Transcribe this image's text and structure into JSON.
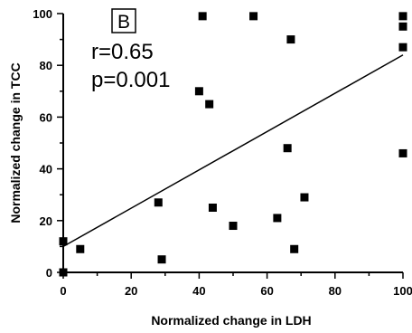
{
  "chart_data": {
    "type": "scatter",
    "title": "",
    "xlabel": "Normalized change in LDH",
    "ylabel": "Normalized change in TCC",
    "xlim": [
      0,
      100
    ],
    "ylim": [
      0,
      100
    ],
    "xticks": [
      "0",
      "20",
      "40",
      "60",
      "80",
      "100"
    ],
    "yticks": [
      "0",
      "20",
      "40",
      "60",
      "80",
      "100"
    ],
    "grid": false,
    "panel_label": "B",
    "annotations": [
      "r=0.65",
      "p=0.001"
    ],
    "series": [
      {
        "points": [
          {
            "x": 0,
            "y": 0
          },
          {
            "x": 0,
            "y": 12
          },
          {
            "x": 5,
            "y": 9
          },
          {
            "x": 28,
            "y": 27
          },
          {
            "x": 29,
            "y": 5
          },
          {
            "x": 40,
            "y": 70
          },
          {
            "x": 41,
            "y": 99
          },
          {
            "x": 43,
            "y": 65
          },
          {
            "x": 44,
            "y": 25
          },
          {
            "x": 50,
            "y": 18
          },
          {
            "x": 56,
            "y": 99
          },
          {
            "x": 63,
            "y": 21
          },
          {
            "x": 66,
            "y": 48
          },
          {
            "x": 67,
            "y": 90
          },
          {
            "x": 68,
            "y": 9
          },
          {
            "x": 71,
            "y": 29
          },
          {
            "x": 100,
            "y": 46
          },
          {
            "x": 100,
            "y": 87
          },
          {
            "x": 100,
            "y": 95
          },
          {
            "x": 100,
            "y": 99
          }
        ]
      }
    ],
    "trendline": {
      "x": [
        0,
        100
      ],
      "y": [
        10,
        84
      ]
    },
    "colors": {
      "marker": "#000000",
      "axis": "#000000"
    }
  }
}
